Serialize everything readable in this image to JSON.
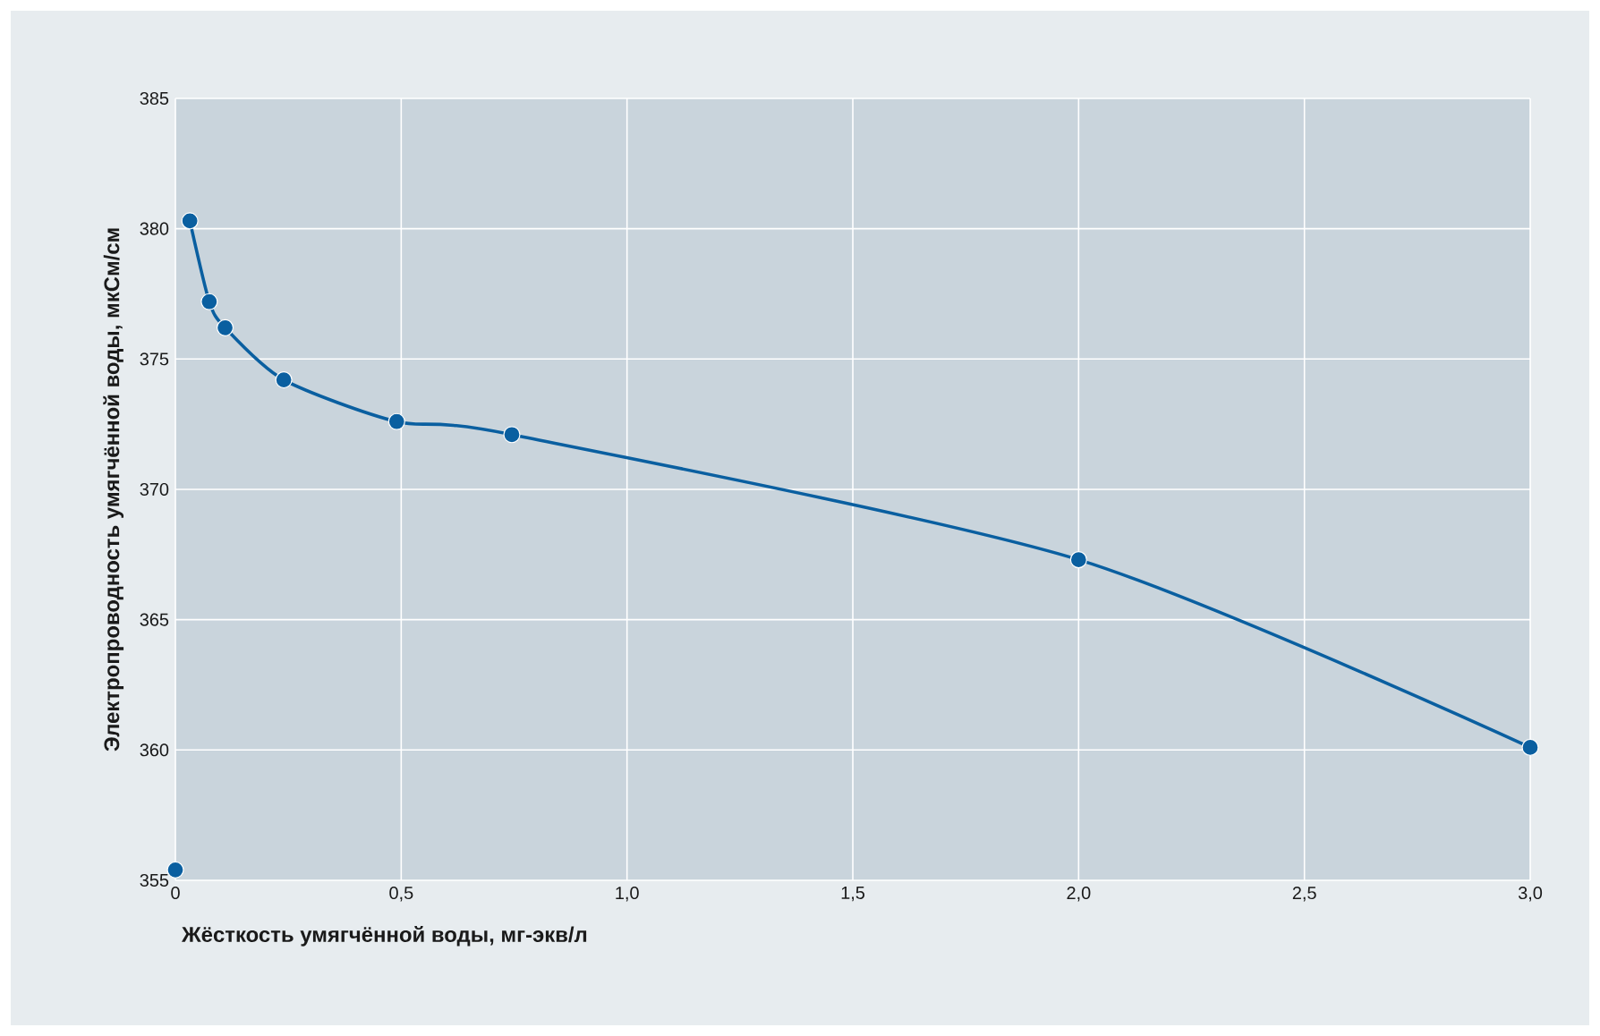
{
  "chart_data": {
    "type": "line",
    "xlabel": "Жёсткость умягчённой воды, мг-экв/л",
    "ylabel": "Электропроводность умягчённой воды, мкСм/см",
    "series": [
      {
        "type": "scatter",
        "color": "#0a5fa0",
        "x": [
          0
        ],
        "values": [
          355.4
        ]
      },
      {
        "color": "#0a5fa0",
        "x": [
          0.032,
          0.075,
          0.11,
          0.24,
          0.49,
          0.745,
          2.0,
          3.0
        ],
        "values": [
          380.3,
          377.2,
          376.2,
          374.2,
          372.6,
          372.1,
          367.3,
          360.1
        ]
      }
    ],
    "xlim": [
      0,
      3
    ],
    "ylim": [
      355,
      385
    ],
    "xticks": [
      0,
      {
        "value": 0.5,
        "label": "0,5"
      },
      {
        "value": 1,
        "label": "1,0"
      },
      {
        "value": 1.5,
        "label": "1,5"
      },
      {
        "value": 2,
        "label": "2,0"
      },
      {
        "value": 2.5,
        "label": "2,5"
      },
      {
        "value": 3,
        "label": "3,0"
      }
    ],
    "yticks": [
      355,
      360,
      365,
      370,
      375,
      380,
      385
    ],
    "grid": true,
    "marker": "circle"
  }
}
